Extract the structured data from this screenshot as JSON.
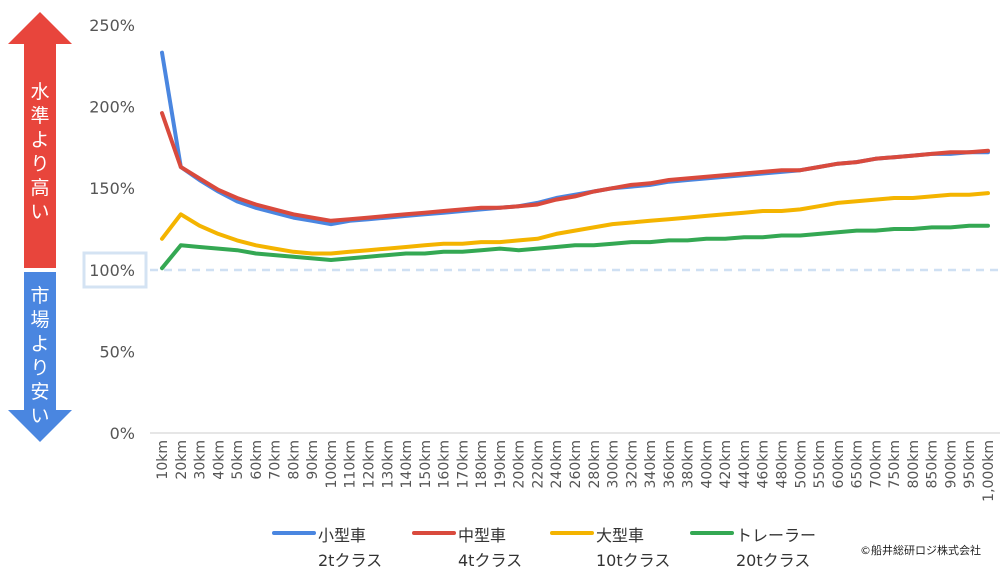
{
  "arrows": {
    "up_label": "水準より高い",
    "down_label": "市場より安い",
    "up_color": "#e8453c",
    "down_color": "#4a86e0"
  },
  "copyright": "©船井総研ロジ株式会社",
  "chart_data": {
    "type": "line",
    "title": "",
    "xlabel": "",
    "ylabel": "",
    "ylim": [
      0,
      250
    ],
    "y_ticks": [
      "0%",
      "50%",
      "100%",
      "150%",
      "200%",
      "250%"
    ],
    "y_tick_values": [
      0,
      50,
      100,
      150,
      200,
      250
    ],
    "reference_line": {
      "value": 100,
      "style": "dashed",
      "color": "#cfe0f3"
    },
    "grid": false,
    "legend_position": "bottom",
    "categories": [
      "10km",
      "20km",
      "30km",
      "40km",
      "50km",
      "60km",
      "70km",
      "80km",
      "90km",
      "100km",
      "110km",
      "120km",
      "130km",
      "140km",
      "150km",
      "160km",
      "170km",
      "180km",
      "190km",
      "200km",
      "220km",
      "240km",
      "260km",
      "280km",
      "300km",
      "320km",
      "340km",
      "360km",
      "380km",
      "400km",
      "420km",
      "440km",
      "460km",
      "480km",
      "500km",
      "550km",
      "600km",
      "650km",
      "700km",
      "750km",
      "800km",
      "850km",
      "900km",
      "950km",
      "1,000km"
    ],
    "series": [
      {
        "name": "小型車",
        "sub": "2tクラス",
        "color": "#4a86e0",
        "values": [
          233,
          163,
          155,
          148,
          142,
          138,
          135,
          132,
          130,
          128,
          130,
          131,
          132,
          133,
          134,
          135,
          136,
          137,
          138,
          139,
          141,
          144,
          146,
          148,
          150,
          151,
          152,
          154,
          155,
          156,
          157,
          158,
          159,
          160,
          161,
          163,
          165,
          166,
          168,
          169,
          170,
          171,
          171,
          172,
          172
        ]
      },
      {
        "name": "中型車",
        "sub": "4tクラス",
        "color": "#d94a3d",
        "values": [
          196,
          163,
          156,
          149,
          144,
          140,
          137,
          134,
          132,
          130,
          131,
          132,
          133,
          134,
          135,
          136,
          137,
          138,
          138,
          139,
          140,
          143,
          145,
          148,
          150,
          152,
          153,
          155,
          156,
          157,
          158,
          159,
          160,
          161,
          161,
          163,
          165,
          166,
          168,
          169,
          170,
          171,
          172,
          172,
          173
        ]
      },
      {
        "name": "大型車",
        "sub": "10tクラス",
        "color": "#f4b400",
        "values": [
          119,
          134,
          127,
          122,
          118,
          115,
          113,
          111,
          110,
          110,
          111,
          112,
          113,
          114,
          115,
          116,
          116,
          117,
          117,
          118,
          119,
          122,
          124,
          126,
          128,
          129,
          130,
          131,
          132,
          133,
          134,
          135,
          136,
          136,
          137,
          139,
          141,
          142,
          143,
          144,
          144,
          145,
          146,
          146,
          147
        ]
      },
      {
        "name": "トレーラー",
        "sub": "20tクラス",
        "color": "#34a853",
        "values": [
          101,
          115,
          114,
          113,
          112,
          110,
          109,
          108,
          107,
          106,
          107,
          108,
          109,
          110,
          110,
          111,
          111,
          112,
          113,
          112,
          113,
          114,
          115,
          115,
          116,
          117,
          117,
          118,
          118,
          119,
          119,
          120,
          120,
          121,
          121,
          122,
          123,
          124,
          124,
          125,
          125,
          126,
          126,
          127,
          127
        ]
      }
    ]
  }
}
